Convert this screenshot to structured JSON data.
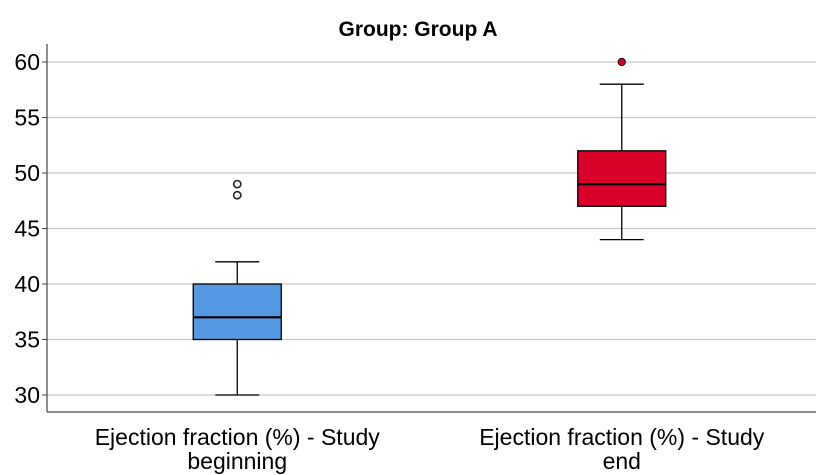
{
  "chart_data": {
    "type": "boxplot",
    "title": "Group: Group A",
    "xlabel": "",
    "ylabel": "",
    "ylim": [
      29,
      62
    ],
    "yticks": [
      30,
      35,
      40,
      45,
      50,
      55,
      60
    ],
    "grid": true,
    "legend": "none",
    "categories": [
      {
        "label_lines": [
          "Ejection fraction (%) - Study",
          "beginning"
        ],
        "color": "#5599e3",
        "whisker_low": 30,
        "q1": 35,
        "median": 37,
        "q3": 40,
        "whisker_high": 42,
        "outliers": [
          48,
          49
        ],
        "outlier_style": "hollow"
      },
      {
        "label_lines": [
          "Ejection fraction (%) - Study",
          "end"
        ],
        "color": "#d9002a",
        "whisker_low": 44,
        "q1": 47,
        "median": 49,
        "q3": 52,
        "whisker_high": 58,
        "outliers": [
          60
        ],
        "outlier_style": "filled"
      }
    ]
  }
}
